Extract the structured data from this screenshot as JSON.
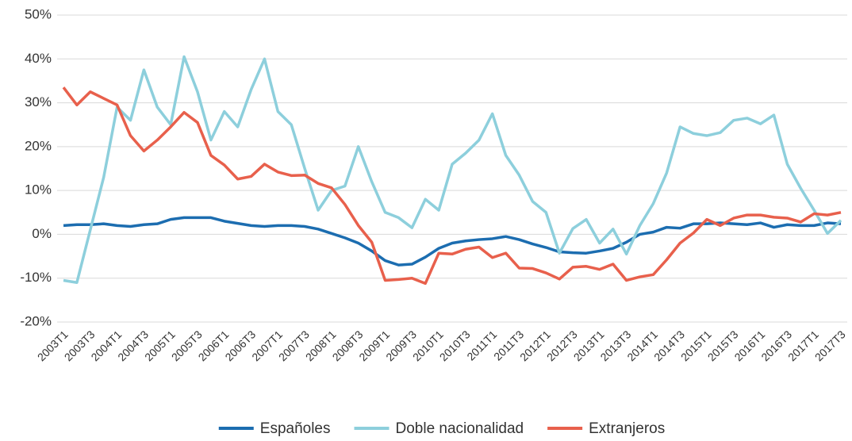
{
  "chart_data": {
    "type": "line",
    "categories": [
      "2003T1",
      null,
      "2003T3",
      null,
      "2004T1",
      null,
      "2004T3",
      null,
      "2005T1",
      null,
      "2005T3",
      null,
      "2006T1",
      null,
      "2006T3",
      null,
      "2007T1",
      null,
      "2007T3",
      null,
      "2008T1",
      null,
      "2008T3",
      null,
      "2009T1",
      null,
      "2009T3",
      null,
      "2010T1",
      null,
      "2010T3",
      null,
      "2011T1",
      null,
      "2011T3",
      null,
      "2012T1",
      null,
      "2012T3",
      null,
      "2013T1",
      null,
      "2013T3",
      null,
      "2014T1",
      null,
      "2014T3",
      null,
      "2015T1",
      null,
      "2015T3",
      null,
      "2016T1",
      null,
      "2016T3",
      null,
      "2017T1",
      null,
      "2017T3"
    ],
    "series": [
      {
        "name": "Españoles",
        "color": "#1c6db0",
        "values": [
          2,
          2.2,
          2.2,
          2.4,
          2,
          1.8,
          2.2,
          2.4,
          3.4,
          3.8,
          3.8,
          3.8,
          3,
          2.5,
          2,
          1.8,
          2,
          2,
          1.8,
          1.2,
          0.2,
          -0.8,
          -2,
          -3.8,
          -6,
          -7,
          -6.8,
          -5.2,
          -3.2,
          -2,
          -1.5,
          -1.2,
          -1,
          -0.5,
          -1.2,
          -2.2,
          -3,
          -4,
          -4.2,
          -4.3,
          -3.8,
          -3.2,
          -1.8,
          0,
          0.5,
          1.6,
          1.4,
          2.4,
          2.4,
          2.6,
          2.4,
          2.2,
          2.6,
          1.6,
          2.2,
          2,
          2,
          2.6,
          2.4
        ]
      },
      {
        "name": "Doble nacionalidad",
        "color": "#8dcfdc",
        "values": [
          -10.5,
          -11,
          1,
          13,
          29,
          26,
          37.5,
          29,
          25,
          40.5,
          32.5,
          21.5,
          28,
          24.5,
          33,
          40,
          28,
          25,
          15,
          5.5,
          10,
          11,
          20,
          12,
          5,
          3.8,
          1.5,
          8,
          5.5,
          16,
          18.5,
          21.5,
          27.5,
          18,
          13.5,
          7.5,
          5,
          -4.3,
          1.3,
          3.4,
          -2,
          1.2,
          -4.5,
          2,
          7,
          14,
          24.5,
          23,
          22.5,
          23.2,
          26,
          26.5,
          25.2,
          27.2,
          16,
          10.5,
          5.5,
          0.2,
          3.2
        ]
      },
      {
        "name": "Extranjeros",
        "color": "#e8604c",
        "values": [
          33.5,
          29.5,
          32.5,
          31,
          29.5,
          22.5,
          19,
          21.5,
          24.5,
          27.8,
          25.5,
          18,
          15.8,
          12.6,
          13.2,
          16,
          14.2,
          13.4,
          13.5,
          11.6,
          10.6,
          6.8,
          2,
          -1.8,
          -10.5,
          -10.3,
          -10,
          -11.2,
          -4.3,
          -4.5,
          -3.4,
          -2.9,
          -5.3,
          -4.3,
          -7.7,
          -7.8,
          -8.8,
          -10.2,
          -7.5,
          -7.3,
          -8,
          -6.8,
          -10.5,
          -9.7,
          -9.2,
          -5.8,
          -2,
          0.3,
          3.4,
          2,
          3.7,
          4.4,
          4.4,
          3.9,
          3.7,
          2.8,
          4.7,
          4.4,
          5
        ]
      }
    ],
    "ylim": [
      -20,
      50
    ],
    "yticks": [
      {
        "value": -20,
        "label": "-20%"
      },
      {
        "value": -10,
        "label": "-10%"
      },
      {
        "value": 0,
        "label": "0%"
      },
      {
        "value": 10,
        "label": "10%"
      },
      {
        "value": 20,
        "label": "20%"
      },
      {
        "value": 30,
        "label": "30%"
      },
      {
        "value": 40,
        "label": "40%"
      },
      {
        "value": 50,
        "label": "50%"
      }
    ],
    "grid": true,
    "legend": "bottom"
  }
}
